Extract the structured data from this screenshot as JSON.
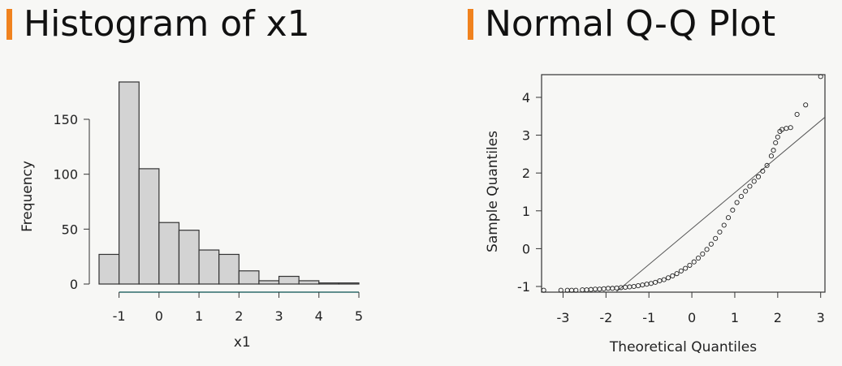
{
  "colors": {
    "accent": "#f0821e",
    "bar_fill": "#d3d3d3",
    "stroke": "#333333",
    "baseline": "#2e6b6b"
  },
  "panels": {
    "left_title": "Histogram of x1",
    "right_title": "Normal Q-Q Plot"
  },
  "chart_data": [
    {
      "type": "bar",
      "title": "Histogram of x1",
      "xlabel": "x1",
      "ylabel": "Frequency",
      "bin_edges": [
        -1.5,
        -1.0,
        -0.5,
        0.0,
        0.5,
        1.0,
        1.5,
        2.0,
        2.5,
        3.0,
        3.5,
        4.0,
        4.5,
        5.0
      ],
      "values": [
        27,
        184,
        105,
        56,
        49,
        31,
        27,
        12,
        3,
        7,
        3,
        1,
        1
      ],
      "xlim": [
        -1.5,
        5.0
      ],
      "ylim": [
        0,
        184
      ],
      "x_ticks": [
        "-1",
        "0",
        "1",
        "2",
        "3",
        "4",
        "5"
      ],
      "y_ticks": [
        "0",
        "50",
        "100",
        "150"
      ],
      "grid": false
    },
    {
      "type": "scatter",
      "title": "Normal Q-Q Plot",
      "xlabel": "Theoretical Quantiles",
      "ylabel": "Sample Quantiles",
      "xlim": [
        -3.5,
        3.1
      ],
      "ylim": [
        -1.15,
        4.6
      ],
      "x_ticks": [
        "-3",
        "-2",
        "-1",
        "0",
        "1",
        "2",
        "3"
      ],
      "y_ticks": [
        "-1",
        "0",
        "1",
        "2",
        "3",
        "4"
      ],
      "reference_line": {
        "intercept": 0.53,
        "slope": 0.95
      },
      "points": [
        [
          -3.45,
          -1.1
        ],
        [
          -3.05,
          -1.1
        ],
        [
          -2.9,
          -1.1
        ],
        [
          -2.8,
          -1.1
        ],
        [
          -2.7,
          -1.1
        ],
        [
          -2.55,
          -1.09
        ],
        [
          -2.45,
          -1.09
        ],
        [
          -2.35,
          -1.08
        ],
        [
          -2.25,
          -1.07
        ],
        [
          -2.15,
          -1.07
        ],
        [
          -2.05,
          -1.06
        ],
        [
          -1.95,
          -1.05
        ],
        [
          -1.85,
          -1.05
        ],
        [
          -1.75,
          -1.04
        ],
        [
          -1.65,
          -1.03
        ],
        [
          -1.55,
          -1.02
        ],
        [
          -1.45,
          -1.01
        ],
        [
          -1.35,
          -1.0
        ],
        [
          -1.25,
          -0.98
        ],
        [
          -1.15,
          -0.96
        ],
        [
          -1.05,
          -0.94
        ],
        [
          -0.95,
          -0.92
        ],
        [
          -0.85,
          -0.89
        ],
        [
          -0.75,
          -0.85
        ],
        [
          -0.65,
          -0.82
        ],
        [
          -0.55,
          -0.77
        ],
        [
          -0.45,
          -0.72
        ],
        [
          -0.35,
          -0.66
        ],
        [
          -0.25,
          -0.59
        ],
        [
          -0.15,
          -0.52
        ],
        [
          -0.05,
          -0.44
        ],
        [
          0.05,
          -0.35
        ],
        [
          0.15,
          -0.25
        ],
        [
          0.25,
          -0.14
        ],
        [
          0.35,
          -0.02
        ],
        [
          0.45,
          0.12
        ],
        [
          0.55,
          0.27
        ],
        [
          0.65,
          0.44
        ],
        [
          0.75,
          0.62
        ],
        [
          0.85,
          0.82
        ],
        [
          0.95,
          1.02
        ],
        [
          1.05,
          1.22
        ],
        [
          1.15,
          1.38
        ],
        [
          1.25,
          1.52
        ],
        [
          1.35,
          1.65
        ],
        [
          1.45,
          1.78
        ],
        [
          1.55,
          1.9
        ],
        [
          1.65,
          2.05
        ],
        [
          1.75,
          2.2
        ],
        [
          1.85,
          2.45
        ],
        [
          1.9,
          2.6
        ],
        [
          1.95,
          2.8
        ],
        [
          2.0,
          2.95
        ],
        [
          2.05,
          3.1
        ],
        [
          2.1,
          3.15
        ],
        [
          2.2,
          3.18
        ],
        [
          2.3,
          3.2
        ],
        [
          2.45,
          3.55
        ],
        [
          2.65,
          3.8
        ],
        [
          3.0,
          4.55
        ]
      ]
    }
  ]
}
